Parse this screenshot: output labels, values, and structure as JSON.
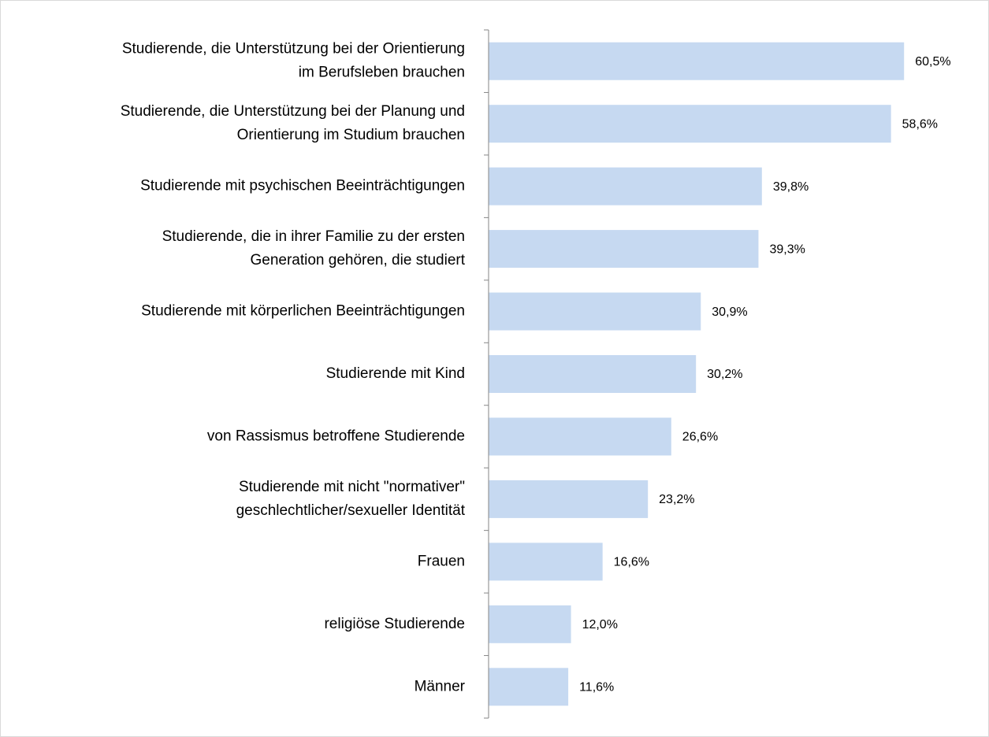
{
  "chart_data": {
    "type": "bar",
    "orientation": "horizontal",
    "categories": [
      [
        "Studierende, die Unterstützung bei der Orientierung",
        "im Berufsleben brauchen"
      ],
      [
        "Studierende, die Unterstützung bei der Planung und",
        "Orientierung im Studium brauchen"
      ],
      [
        "Studierende mit psychischen Beeinträchtigungen"
      ],
      [
        "Studierende, die in ihrer Familie zu der ersten",
        "Generation gehören, die studiert"
      ],
      [
        "Studierende mit körperlichen Beeinträchtigungen"
      ],
      [
        "Studierende mit Kind"
      ],
      [
        "von Rassismus betroffene Studierende"
      ],
      [
        "Studierende mit nicht \"normativer\"",
        "geschlechtlicher/sexueller Identität"
      ],
      [
        "Frauen"
      ],
      [
        "religiöse Studierende"
      ],
      [
        "Männer"
      ]
    ],
    "values": [
      60.5,
      58.6,
      39.8,
      39.3,
      30.9,
      30.2,
      26.6,
      23.2,
      16.6,
      12.0,
      11.6
    ],
    "value_labels": [
      "60,5%",
      "58,6%",
      "39,8%",
      "39,3%",
      "30,9%",
      "30,2%",
      "26,6%",
      "23,2%",
      "16,6%",
      "12,0%",
      "11,6%"
    ],
    "color": "#c6d9f1",
    "xlim": [
      0,
      70
    ]
  }
}
